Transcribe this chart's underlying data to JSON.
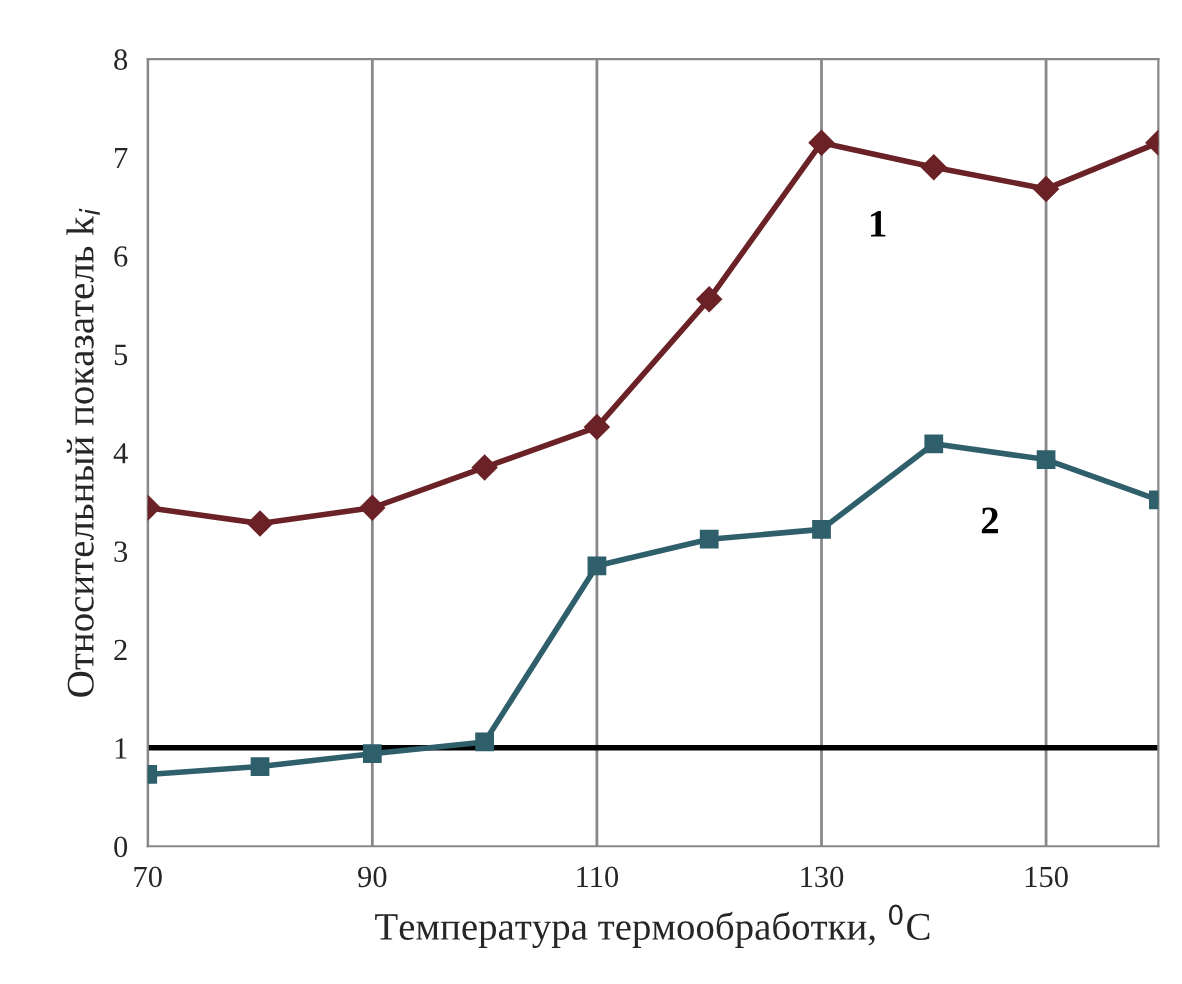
{
  "chart_data": {
    "type": "line",
    "xlabel": "Температура термообработки, $^{0}$C",
    "ylabel": "Относительный показатель k$_{i}$",
    "x": [
      70,
      80,
      90,
      100,
      110,
      120,
      130,
      140,
      150,
      160
    ],
    "series": [
      {
        "name": "1",
        "color": "#6b2226",
        "marker": "diamond",
        "values": [
          3.44,
          3.28,
          3.44,
          3.85,
          4.26,
          5.56,
          7.15,
          6.9,
          6.68,
          7.15
        ]
      },
      {
        "name": "2",
        "color": "#2e5f6b",
        "marker": "square",
        "values": [
          0.73,
          0.81,
          0.94,
          1.06,
          2.85,
          3.12,
          3.22,
          4.09,
          3.93,
          3.52
        ]
      }
    ],
    "xlim": [
      70,
      160
    ],
    "xticks": [
      70,
      90,
      110,
      130,
      150
    ],
    "ylim": [
      0,
      8
    ],
    "yticks": [
      0,
      1,
      2,
      3,
      4,
      5,
      6,
      7,
      8
    ],
    "grid": "x",
    "ref_lines": [
      {
        "axis": "y",
        "value": 1,
        "color": "#000000"
      }
    ],
    "legend": false
  }
}
